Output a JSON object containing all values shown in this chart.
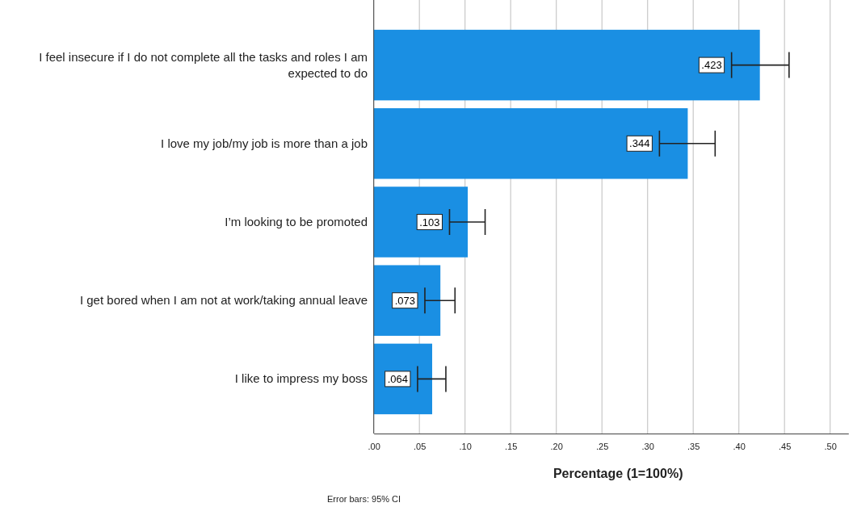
{
  "chart_data": {
    "type": "bar",
    "orientation": "horizontal",
    "categories": [
      "I feel insecure if I do not complete all the tasks and roles I am expected to do",
      "I love my job/my job is more than a job",
      "I’m looking to be promoted",
      "I get bored when I am not at work/taking annual leave",
      "I like to impress my boss"
    ],
    "values": [
      0.423,
      0.344,
      0.103,
      0.073,
      0.064
    ],
    "errors": [
      [
        0.392,
        0.455
      ],
      [
        0.313,
        0.374
      ],
      [
        0.083,
        0.122
      ],
      [
        0.056,
        0.089
      ],
      [
        0.048,
        0.079
      ]
    ],
    "value_labels": [
      ".423",
      ".344",
      ".103",
      ".073",
      ".064"
    ],
    "color": "#1a8fe3",
    "xlabel": "Percentage (1=100%)",
    "xlim": [
      0,
      0.52
    ],
    "xticks": [
      {
        "value": 0,
        "label": ".00"
      },
      {
        "value": 0.05,
        "label": ".05"
      },
      {
        "value": 0.1,
        "label": ".10"
      },
      {
        "value": 0.15,
        "label": ".15"
      },
      {
        "value": 0.2,
        "label": ".20"
      },
      {
        "value": 0.25,
        "label": ".25"
      },
      {
        "value": 0.3,
        "label": ".30"
      },
      {
        "value": 0.35,
        "label": ".35"
      },
      {
        "value": 0.4,
        "label": ".40"
      },
      {
        "value": 0.45,
        "label": ".45"
      },
      {
        "value": 0.5,
        "label": ".50"
      }
    ],
    "grid": "x",
    "annotations": [
      "Error bars: 95% CI"
    ]
  }
}
